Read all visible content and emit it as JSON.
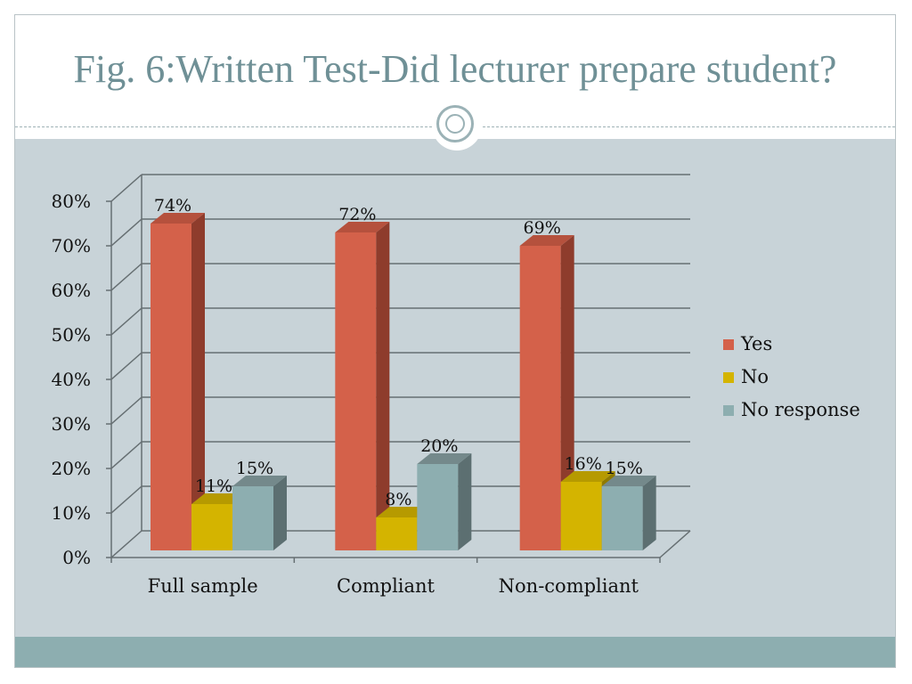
{
  "slide": {
    "title": "Fig. 6:Written Test-Did lecturer prepare student?"
  },
  "chart_data": {
    "type": "bar",
    "categories": [
      "Full sample",
      "Compliant",
      "Non-compliant"
    ],
    "series": [
      {
        "name": "Yes",
        "values": [
          74,
          72,
          69
        ],
        "labels": [
          "74%",
          "72%",
          "69%"
        ],
        "color": "#d4614a",
        "side": "#8e3c2c",
        "top": "#b5513d"
      },
      {
        "name": "No",
        "values": [
          11,
          8,
          16
        ],
        "labels": [
          "11%",
          "8%",
          "16%"
        ],
        "color": "#d4b400",
        "side": "#8f7a00",
        "top": "#b69a00"
      },
      {
        "name": "No response",
        "values": [
          15,
          20,
          15
        ],
        "labels": [
          "15%",
          "20%",
          "15%"
        ],
        "color": "#8daeb0",
        "side": "#5c6f71",
        "top": "#74898b"
      }
    ],
    "y_ticks": [
      "0%",
      "10%",
      "20%",
      "30%",
      "40%",
      "50%",
      "60%",
      "70%",
      "80%"
    ],
    "ylim": [
      0,
      80
    ],
    "legend": "right",
    "grid": true
  }
}
